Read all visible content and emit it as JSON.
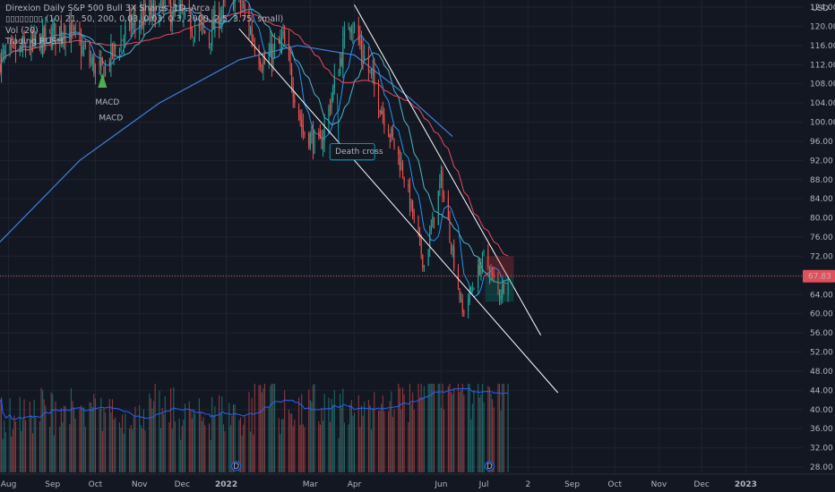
{
  "legend": {
    "line1": "Direxion Daily S&P 500 Bull 3X Shares, 1D, Arca",
    "line2": "▯▯▯▯▯▯▯▯ (10, 21, 50, 200, 0.03, 0.03, 0.3, 2000, 2.5, 3.75, small)",
    "line3": "Vol (20)",
    "line4": "Trading RUSH"
  },
  "price_axis": {
    "currency": "USD",
    "ticks": [
      "124.00",
      "120.00",
      "116.00",
      "112.00",
      "108.00",
      "104.00",
      "100.00",
      "96.00",
      "92.00",
      "88.00",
      "84.00",
      "80.00",
      "76.00",
      "72.00",
      "68.00",
      "64.00",
      "60.00",
      "56.00",
      "52.00",
      "48.00",
      "44.00",
      "40.00",
      "36.00",
      "32.00",
      "28.00"
    ],
    "current_price": "67.83"
  },
  "time_axis": {
    "labels": [
      "Aug",
      "Sep",
      "Oct",
      "Nov",
      "Dec",
      "2022",
      "Mar",
      "Apr",
      "Jun",
      "Jul",
      "2",
      "Sep",
      "Oct",
      "Nov",
      "Dec",
      "2023"
    ]
  },
  "annotations": {
    "macd_label_1": "MACD",
    "macd_label_2": "MACD",
    "death_cross": "Death cross",
    "earnings_marker": "D"
  },
  "colors": {
    "background": "#131722",
    "up": "#26a69a",
    "down": "#ef5350",
    "ma_fast": "#2196f3",
    "ma_mid": "#4fb6c8",
    "ma_slow": "#e84a5f",
    "ma_long": "#3f80d9",
    "trendline": "#ffffff",
    "price_line": "#e0515c"
  },
  "chart_data": {
    "type": "candlestick",
    "ticker": "Direxion Daily S&P 500 Bull 3X Shares",
    "interval": "1D",
    "exchange": "Arca",
    "ylim": [
      26,
      126
    ],
    "price_scale": "linear",
    "last_price": 67.83,
    "x_range": [
      "2021-07-26",
      "2023-01-31"
    ],
    "anchors": [
      {
        "date": "2021-07-26",
        "price": 113
      },
      {
        "date": "2021-08-20",
        "price": 116
      },
      {
        "date": "2021-09-10",
        "price": 120
      },
      {
        "date": "2021-10-04",
        "price": 110
      },
      {
        "date": "2021-10-25",
        "price": 120
      },
      {
        "date": "2021-11-20",
        "price": 124
      },
      {
        "date": "2021-12-20",
        "price": 118
      },
      {
        "date": "2022-01-03",
        "price": 127
      },
      {
        "date": "2022-01-12",
        "price": 124
      },
      {
        "date": "2022-01-27",
        "price": 112
      },
      {
        "date": "2022-02-10",
        "price": 117
      },
      {
        "date": "2022-02-24",
        "price": 98
      },
      {
        "date": "2022-03-08",
        "price": 95
      },
      {
        "date": "2022-03-29",
        "price": 122
      },
      {
        "date": "2022-04-12",
        "price": 110
      },
      {
        "date": "2022-05-05",
        "price": 90
      },
      {
        "date": "2022-05-20",
        "price": 70
      },
      {
        "date": "2022-06-01",
        "price": 88
      },
      {
        "date": "2022-06-16",
        "price": 60
      },
      {
        "date": "2022-07-01",
        "price": 72
      },
      {
        "date": "2022-07-12",
        "price": 64
      },
      {
        "date": "2022-07-18",
        "price": 67.83
      }
    ],
    "volume_profile": {
      "max_bar_date": "2022-01-28",
      "avg_line_color": "#2962ff"
    },
    "drawings": {
      "lower_channel": [
        {
          "date": "2022-01-10",
          "price": 119.5
        },
        {
          "date": "2022-08-22",
          "price": 43.5
        }
      ],
      "upper_channel": [
        {
          "date": "2022-04-01",
          "price": 124.5
        },
        {
          "date": "2022-08-10",
          "price": 55.5
        }
      ],
      "death_cross_date": "2022-03-11",
      "position_box": {
        "entry": 67.83,
        "stop": 72,
        "target": 62.5,
        "from": "2022-07-02",
        "to": "2022-07-22"
      }
    }
  }
}
